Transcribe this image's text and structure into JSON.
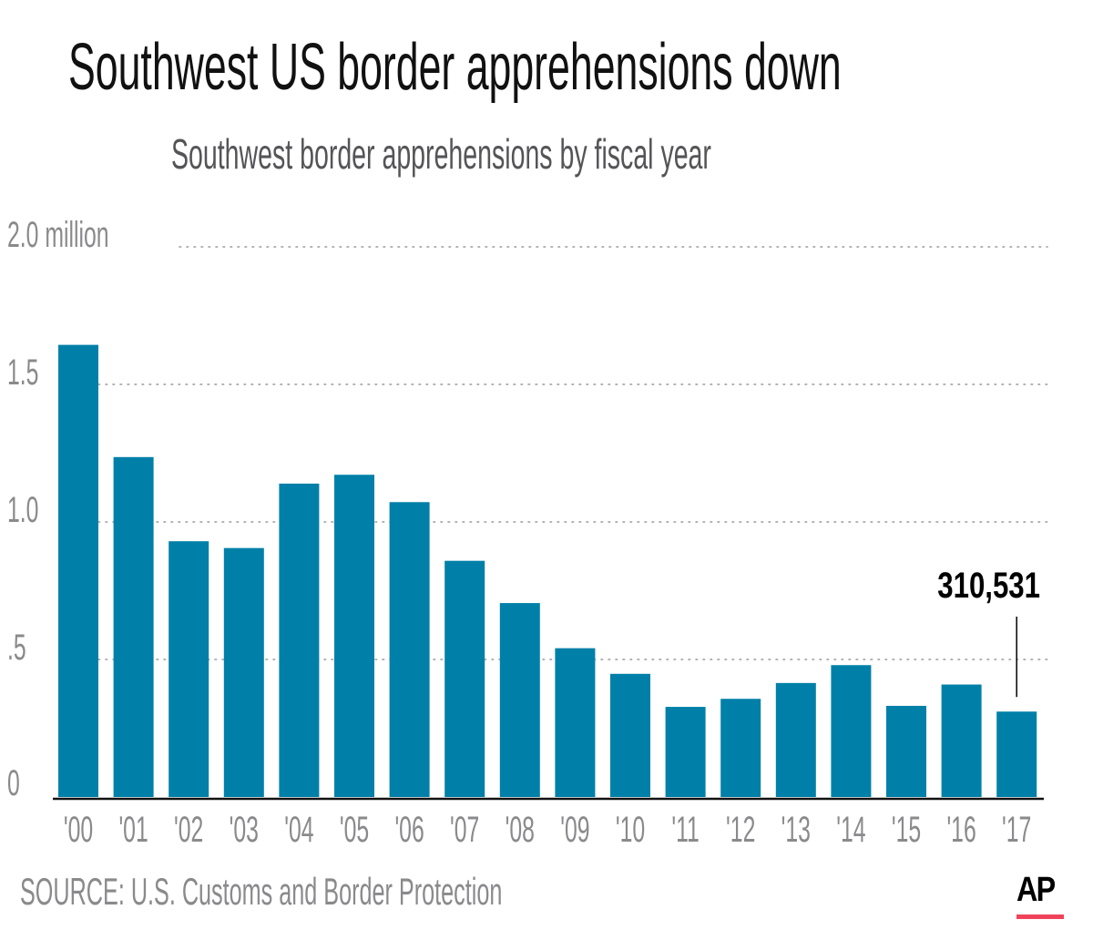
{
  "header": {
    "title": "Southwest US border apprehensions down",
    "subtitle": "Southwest border apprehensions by fiscal year"
  },
  "footer": {
    "source": "SOURCE: U.S. Customs and Border Protection",
    "logo_text": "AP",
    "logo_accent_color": "#f0435a"
  },
  "colors": {
    "bar": "#0080a8",
    "axis_text": "#8a8a8d",
    "gridline": "#9a9a9d",
    "baseline": "#111111"
  },
  "chart_data": {
    "type": "bar",
    "title": "Southwest border apprehensions by fiscal year",
    "xlabel": "",
    "ylabel": "",
    "categories": [
      "'00",
      "'01",
      "'02",
      "'03",
      "'04",
      "'05",
      "'06",
      "'07",
      "'08",
      "'09",
      "'10",
      "'11",
      "'12",
      "'13",
      "'14",
      "'15",
      "'16",
      "'17"
    ],
    "values": [
      1643679,
      1235718,
      929809,
      905065,
      1139282,
      1171396,
      1071972,
      858638,
      705005,
      540865,
      447731,
      327577,
      356873,
      414397,
      479371,
      331333,
      408870,
      310531
    ],
    "ylim": [
      0,
      2000000
    ],
    "yticks": [
      0,
      500000,
      1000000,
      1500000,
      2000000
    ],
    "ytick_labels": [
      "0",
      ".5",
      "1.0",
      "1.5",
      "2.0 million"
    ],
    "grid": true,
    "grid_style": "dotted",
    "legend": "none",
    "annotations": [
      {
        "category": "'17",
        "text": "310,531",
        "style": "bold",
        "leader_line": true
      }
    ]
  }
}
